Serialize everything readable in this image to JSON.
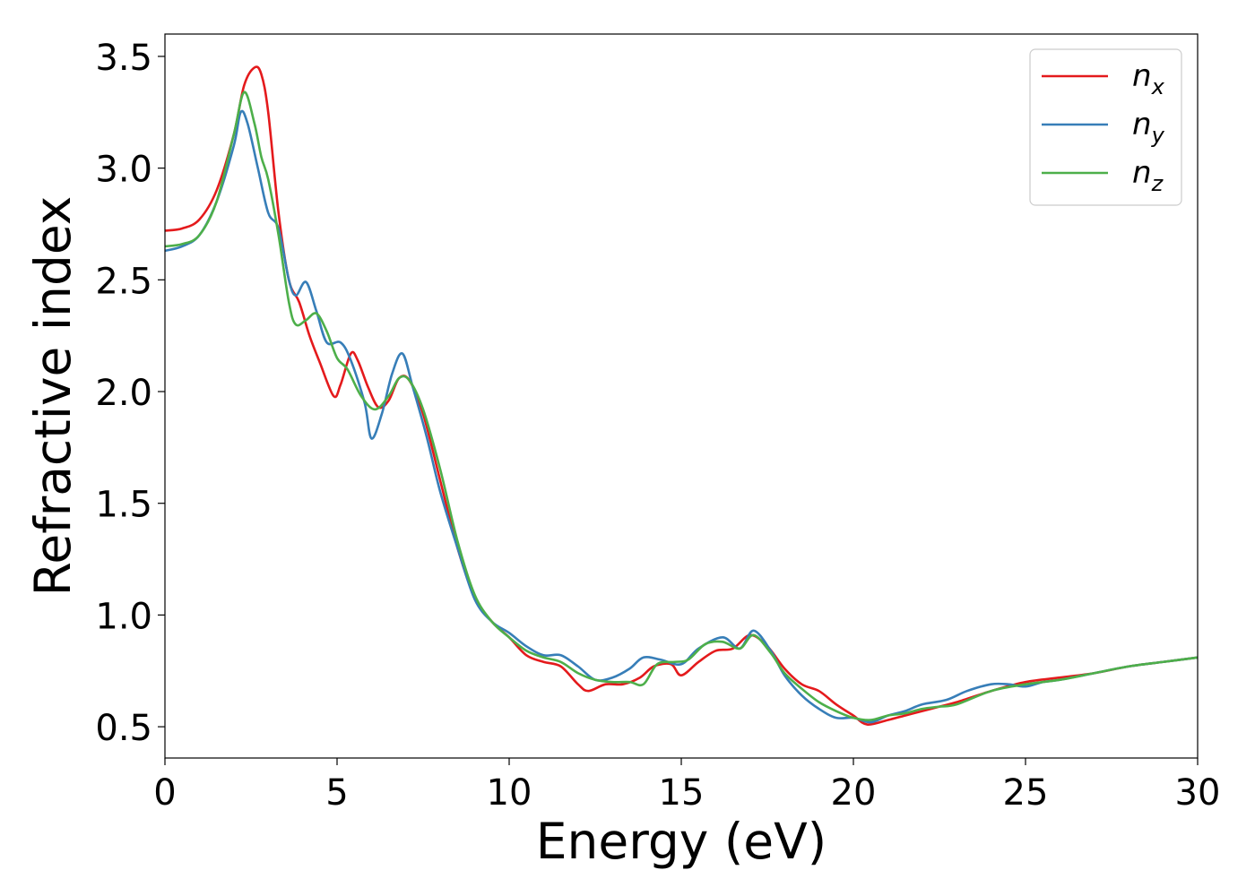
{
  "chart_data": {
    "type": "line",
    "xlabel": "Energy (eV)",
    "ylabel": "Refractive index",
    "xlim": [
      0,
      30
    ],
    "ylim": [
      0.36,
      3.6
    ],
    "xticks": [
      0,
      5,
      10,
      15,
      20,
      25,
      30
    ],
    "xtick_labels": [
      "0",
      "5",
      "10",
      "15",
      "20",
      "25",
      "30"
    ],
    "yticks": [
      0.5,
      1.0,
      1.5,
      2.0,
      2.5,
      3.0,
      3.5
    ],
    "ytick_labels": [
      "0.5",
      "1.0",
      "1.5",
      "2.0",
      "2.5",
      "3.0",
      "3.5"
    ],
    "grid": false,
    "legend": "top-right",
    "series": [
      {
        "name": "n",
        "subscript": "x",
        "color": "#e41a1c",
        "points": [
          [
            0,
            2.72
          ],
          [
            0.5,
            2.73
          ],
          [
            1.0,
            2.77
          ],
          [
            1.5,
            2.9
          ],
          [
            2.0,
            3.15
          ],
          [
            2.3,
            3.37
          ],
          [
            2.6,
            3.45
          ],
          [
            2.8,
            3.42
          ],
          [
            3.0,
            3.25
          ],
          [
            3.3,
            2.8
          ],
          [
            3.6,
            2.5
          ],
          [
            3.9,
            2.4
          ],
          [
            4.2,
            2.25
          ],
          [
            4.5,
            2.13
          ],
          [
            4.9,
            1.98
          ],
          [
            5.1,
            2.03
          ],
          [
            5.4,
            2.17
          ],
          [
            5.6,
            2.14
          ],
          [
            5.9,
            2.02
          ],
          [
            6.2,
            1.93
          ],
          [
            6.5,
            1.96
          ],
          [
            6.8,
            2.06
          ],
          [
            7.1,
            2.05
          ],
          [
            7.5,
            1.9
          ],
          [
            8.0,
            1.6
          ],
          [
            8.5,
            1.3
          ],
          [
            9.0,
            1.08
          ],
          [
            9.5,
            0.97
          ],
          [
            10.0,
            0.9
          ],
          [
            10.5,
            0.82
          ],
          [
            11.0,
            0.79
          ],
          [
            11.5,
            0.77
          ],
          [
            12.0,
            0.69
          ],
          [
            12.3,
            0.66
          ],
          [
            12.8,
            0.69
          ],
          [
            13.3,
            0.69
          ],
          [
            13.8,
            0.72
          ],
          [
            14.2,
            0.77
          ],
          [
            14.7,
            0.78
          ],
          [
            15.0,
            0.73
          ],
          [
            15.5,
            0.79
          ],
          [
            16.0,
            0.84
          ],
          [
            16.5,
            0.85
          ],
          [
            17.0,
            0.91
          ],
          [
            17.5,
            0.86
          ],
          [
            18.0,
            0.76
          ],
          [
            18.5,
            0.69
          ],
          [
            19.0,
            0.66
          ],
          [
            19.5,
            0.6
          ],
          [
            20.0,
            0.55
          ],
          [
            20.4,
            0.51
          ],
          [
            21.0,
            0.53
          ],
          [
            21.5,
            0.55
          ],
          [
            22.0,
            0.57
          ],
          [
            22.5,
            0.59
          ],
          [
            23.0,
            0.61
          ],
          [
            24.0,
            0.66
          ],
          [
            25.0,
            0.7
          ],
          [
            26.0,
            0.72
          ],
          [
            27.0,
            0.74
          ],
          [
            28.0,
            0.77
          ],
          [
            29.0,
            0.79
          ],
          [
            30.0,
            0.81
          ]
        ]
      },
      {
        "name": "n",
        "subscript": "y",
        "color": "#377eb8",
        "points": [
          [
            0,
            2.63
          ],
          [
            0.5,
            2.65
          ],
          [
            1.0,
            2.7
          ],
          [
            1.5,
            2.85
          ],
          [
            2.0,
            3.1
          ],
          [
            2.2,
            3.25
          ],
          [
            2.4,
            3.2
          ],
          [
            2.7,
            3.0
          ],
          [
            3.0,
            2.8
          ],
          [
            3.3,
            2.73
          ],
          [
            3.6,
            2.5
          ],
          [
            3.8,
            2.43
          ],
          [
            4.1,
            2.49
          ],
          [
            4.4,
            2.36
          ],
          [
            4.7,
            2.22
          ],
          [
            5.1,
            2.22
          ],
          [
            5.4,
            2.14
          ],
          [
            5.8,
            1.95
          ],
          [
            6.0,
            1.79
          ],
          [
            6.3,
            1.9
          ],
          [
            6.6,
            2.08
          ],
          [
            6.9,
            2.17
          ],
          [
            7.2,
            2.02
          ],
          [
            7.6,
            1.8
          ],
          [
            8.0,
            1.55
          ],
          [
            8.5,
            1.3
          ],
          [
            9.0,
            1.07
          ],
          [
            9.5,
            0.97
          ],
          [
            10.0,
            0.92
          ],
          [
            10.5,
            0.86
          ],
          [
            11.0,
            0.82
          ],
          [
            11.5,
            0.82
          ],
          [
            12.0,
            0.77
          ],
          [
            12.5,
            0.71
          ],
          [
            13.0,
            0.72
          ],
          [
            13.5,
            0.76
          ],
          [
            13.9,
            0.81
          ],
          [
            14.4,
            0.8
          ],
          [
            15.0,
            0.78
          ],
          [
            15.5,
            0.85
          ],
          [
            16.2,
            0.9
          ],
          [
            16.7,
            0.85
          ],
          [
            17.1,
            0.93
          ],
          [
            17.6,
            0.84
          ],
          [
            18.0,
            0.73
          ],
          [
            18.5,
            0.64
          ],
          [
            19.0,
            0.58
          ],
          [
            19.5,
            0.54
          ],
          [
            20.0,
            0.54
          ],
          [
            20.5,
            0.52
          ],
          [
            21.0,
            0.55
          ],
          [
            21.5,
            0.57
          ],
          [
            22.0,
            0.6
          ],
          [
            22.7,
            0.62
          ],
          [
            23.3,
            0.66
          ],
          [
            24.0,
            0.69
          ],
          [
            24.5,
            0.69
          ],
          [
            25.0,
            0.68
          ],
          [
            25.5,
            0.7
          ],
          [
            26.0,
            0.71
          ],
          [
            27.0,
            0.74
          ],
          [
            28.0,
            0.77
          ],
          [
            29.0,
            0.79
          ],
          [
            30.0,
            0.81
          ]
        ]
      },
      {
        "name": "n",
        "subscript": "z",
        "color": "#4daf4a",
        "points": [
          [
            0,
            2.65
          ],
          [
            0.5,
            2.66
          ],
          [
            1.0,
            2.7
          ],
          [
            1.5,
            2.85
          ],
          [
            2.0,
            3.15
          ],
          [
            2.3,
            3.34
          ],
          [
            2.6,
            3.2
          ],
          [
            2.8,
            3.05
          ],
          [
            3.0,
            2.95
          ],
          [
            3.3,
            2.7
          ],
          [
            3.6,
            2.4
          ],
          [
            3.8,
            2.3
          ],
          [
            4.1,
            2.32
          ],
          [
            4.4,
            2.35
          ],
          [
            4.7,
            2.27
          ],
          [
            5.0,
            2.15
          ],
          [
            5.3,
            2.1
          ],
          [
            5.7,
            1.98
          ],
          [
            6.1,
            1.92
          ],
          [
            6.5,
            1.98
          ],
          [
            6.8,
            2.06
          ],
          [
            7.1,
            2.05
          ],
          [
            7.5,
            1.92
          ],
          [
            8.0,
            1.65
          ],
          [
            8.5,
            1.33
          ],
          [
            9.0,
            1.09
          ],
          [
            9.5,
            0.97
          ],
          [
            10.0,
            0.9
          ],
          [
            10.5,
            0.84
          ],
          [
            11.0,
            0.81
          ],
          [
            11.5,
            0.79
          ],
          [
            12.0,
            0.74
          ],
          [
            12.5,
            0.71
          ],
          [
            13.0,
            0.7
          ],
          [
            13.5,
            0.7
          ],
          [
            13.9,
            0.69
          ],
          [
            14.3,
            0.78
          ],
          [
            14.8,
            0.79
          ],
          [
            15.2,
            0.8
          ],
          [
            15.7,
            0.87
          ],
          [
            16.2,
            0.88
          ],
          [
            16.7,
            0.85
          ],
          [
            17.1,
            0.91
          ],
          [
            17.6,
            0.83
          ],
          [
            18.0,
            0.74
          ],
          [
            18.5,
            0.67
          ],
          [
            19.0,
            0.61
          ],
          [
            19.5,
            0.57
          ],
          [
            20.0,
            0.54
          ],
          [
            20.5,
            0.53
          ],
          [
            21.0,
            0.55
          ],
          [
            21.5,
            0.56
          ],
          [
            22.0,
            0.58
          ],
          [
            22.5,
            0.59
          ],
          [
            23.0,
            0.6
          ],
          [
            24.0,
            0.66
          ],
          [
            25.0,
            0.69
          ],
          [
            26.0,
            0.71
          ],
          [
            27.0,
            0.74
          ],
          [
            28.0,
            0.77
          ],
          [
            29.0,
            0.79
          ],
          [
            30.0,
            0.81
          ]
        ]
      }
    ]
  }
}
